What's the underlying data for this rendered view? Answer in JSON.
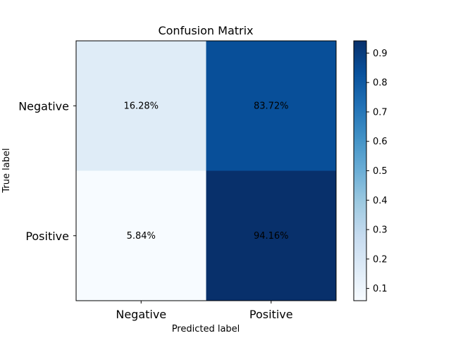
{
  "chart_data": {
    "type": "heatmap",
    "title": "Confusion Matrix",
    "xlabel": "Predicted label",
    "ylabel": "True label",
    "x_categories": [
      "Negative",
      "Positive"
    ],
    "y_categories": [
      "Negative",
      "Positive"
    ],
    "values": [
      [
        0.1628,
        0.8372
      ],
      [
        0.0584,
        0.9416
      ]
    ],
    "cell_labels": [
      [
        "16.28%",
        "83.72%"
      ],
      [
        "5.84%",
        "94.16%"
      ]
    ],
    "colormap": "Blues",
    "colorbar": {
      "range": [
        0.0584,
        0.9416
      ],
      "ticks": [
        0.1,
        0.2,
        0.3,
        0.4,
        0.5,
        0.6,
        0.7,
        0.8,
        0.9
      ],
      "tick_labels": [
        "0.1",
        "0.2",
        "0.3",
        "0.4",
        "0.5",
        "0.6",
        "0.7",
        "0.8",
        "0.9"
      ]
    }
  }
}
